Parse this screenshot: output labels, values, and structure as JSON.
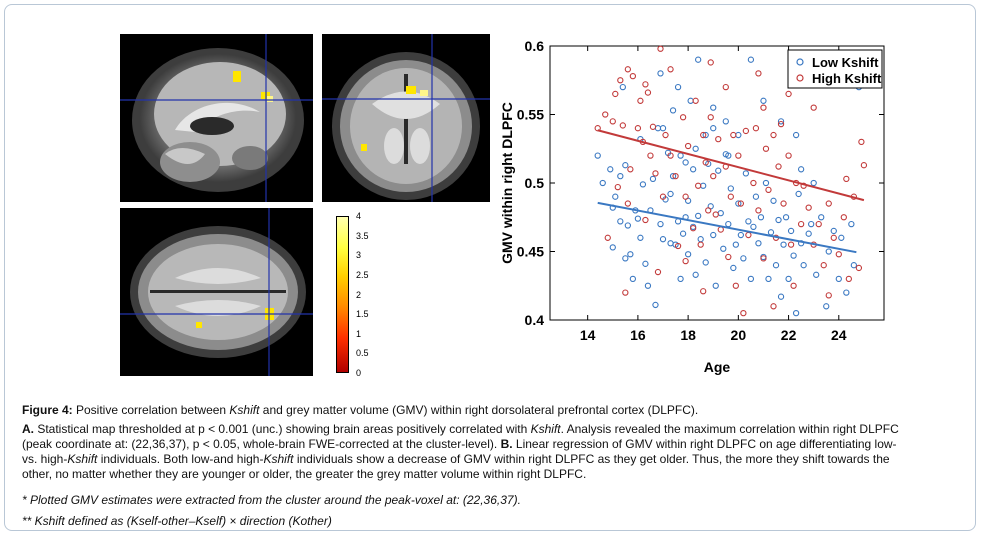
{
  "figure": {
    "label": "Figure 4:",
    "title_pre": " Positive correlation between ",
    "title_kshift": "Kshift",
    "title_post": " and grey matter volume (GMV) within right dorsolateral prefrontal cortex (DLPFC).",
    "a_label": "A.",
    "a_text_1": " Statistical map thresholded at p < 0.001 (unc.) showing brain areas positively correlated with ",
    "a_kshift": "Kshift",
    "a_text_2": ". Analysis revealed the maximum correlation within right DLPFC",
    "line2": "(peak coordinate at: (22,36,37), p < 0.05, whole-brain FWE-corrected at the cluster-level). ",
    "b_label": "B.",
    "line2_b": " Linear regression of GMV within right DLPFC on age differentiating low-",
    "line3_pre": "vs. high-",
    "line3_kshift": "Kshift",
    "line3_post": " individuals. Both low-and high-",
    "line3_kshift2": "Kshift",
    "line3_post2": " individuals show a decrease of GMV within right DLPFC as they get older. Thus, the more they shift towards the",
    "line4": "other, no matter whether they are younger or older, the greater the grey matter volume within right DLPFC.",
    "note1": "* Plotted GMV estimates were extracted from the cluster around the peak-voxel at: (22,36,37).",
    "note2": "** Kshift defined as (Kself-other–Kself) × direction (Kother)"
  },
  "colorbar": {
    "ticks": [
      "4",
      "3.5",
      "3",
      "2.5",
      "2",
      "1.5",
      "1",
      "0.5",
      "0"
    ]
  },
  "chart_data": {
    "type": "scatter",
    "xlabel": "Age",
    "ylabel": "GMV within right DLPFC",
    "xlim": [
      12.5,
      25.8
    ],
    "ylim": [
      0.4,
      0.6
    ],
    "xticks": [
      "14",
      "16",
      "18",
      "20",
      "22",
      "24"
    ],
    "yticks": [
      "0.4",
      "0.45",
      "0.5",
      "0.55",
      "0.6"
    ],
    "legend": "top-right",
    "series": [
      {
        "name": "Low Kshift",
        "color": "#3a78c2",
        "fit": [
          [
            14.4,
            0.4855
          ],
          [
            24.7,
            0.4495
          ]
        ],
        "points": [
          [
            14.4,
            0.52
          ],
          [
            14.6,
            0.5
          ],
          [
            14.9,
            0.51
          ],
          [
            15.0,
            0.482
          ],
          [
            15.0,
            0.453
          ],
          [
            15.1,
            0.49
          ],
          [
            15.3,
            0.472
          ],
          [
            15.3,
            0.505
          ],
          [
            15.5,
            0.513
          ],
          [
            15.5,
            0.445
          ],
          [
            15.6,
            0.469
          ],
          [
            15.7,
            0.448
          ],
          [
            15.8,
            0.43
          ],
          [
            15.9,
            0.48
          ],
          [
            16.0,
            0.474
          ],
          [
            16.1,
            0.532
          ],
          [
            16.1,
            0.46
          ],
          [
            16.2,
            0.499
          ],
          [
            16.3,
            0.441
          ],
          [
            16.4,
            0.425
          ],
          [
            16.5,
            0.48
          ],
          [
            16.6,
            0.503
          ],
          [
            16.7,
            0.411
          ],
          [
            16.8,
            0.54
          ],
          [
            16.9,
            0.47
          ],
          [
            17.0,
            0.54
          ],
          [
            17.0,
            0.459
          ],
          [
            17.1,
            0.488
          ],
          [
            17.2,
            0.522
          ],
          [
            17.3,
            0.456
          ],
          [
            17.3,
            0.492
          ],
          [
            17.4,
            0.505
          ],
          [
            17.5,
            0.455
          ],
          [
            17.6,
            0.472
          ],
          [
            17.7,
            0.52
          ],
          [
            17.7,
            0.43
          ],
          [
            17.8,
            0.463
          ],
          [
            17.9,
            0.515
          ],
          [
            17.9,
            0.475
          ],
          [
            18.0,
            0.487
          ],
          [
            18.0,
            0.448
          ],
          [
            18.1,
            0.56
          ],
          [
            18.2,
            0.51
          ],
          [
            18.2,
            0.468
          ],
          [
            18.3,
            0.433
          ],
          [
            18.3,
            0.525
          ],
          [
            18.4,
            0.476
          ],
          [
            18.5,
            0.459
          ],
          [
            18.6,
            0.498
          ],
          [
            18.7,
            0.535
          ],
          [
            18.7,
            0.442
          ],
          [
            18.8,
            0.514
          ],
          [
            18.9,
            0.483
          ],
          [
            19.0,
            0.462
          ],
          [
            19.0,
            0.54
          ],
          [
            19.1,
            0.425
          ],
          [
            19.2,
            0.509
          ],
          [
            19.3,
            0.478
          ],
          [
            19.4,
            0.452
          ],
          [
            19.5,
            0.521
          ],
          [
            19.6,
            0.47
          ],
          [
            19.7,
            0.496
          ],
          [
            19.8,
            0.438
          ],
          [
            19.9,
            0.455
          ],
          [
            20.0,
            0.535
          ],
          [
            20.0,
            0.485
          ],
          [
            20.1,
            0.462
          ],
          [
            20.2,
            0.445
          ],
          [
            20.3,
            0.507
          ],
          [
            20.4,
            0.472
          ],
          [
            20.5,
            0.43
          ],
          [
            20.6,
            0.468
          ],
          [
            20.7,
            0.49
          ],
          [
            20.8,
            0.456
          ],
          [
            20.9,
            0.475
          ],
          [
            21.0,
            0.446
          ],
          [
            21.1,
            0.5
          ],
          [
            21.2,
            0.43
          ],
          [
            21.3,
            0.464
          ],
          [
            21.4,
            0.487
          ],
          [
            21.5,
            0.44
          ],
          [
            21.6,
            0.473
          ],
          [
            21.7,
            0.417
          ],
          [
            21.8,
            0.455
          ],
          [
            21.9,
            0.475
          ],
          [
            22.0,
            0.43
          ],
          [
            22.1,
            0.465
          ],
          [
            22.2,
            0.447
          ],
          [
            22.3,
            0.405
          ],
          [
            22.4,
            0.492
          ],
          [
            22.5,
            0.456
          ],
          [
            22.6,
            0.44
          ],
          [
            22.8,
            0.463
          ],
          [
            22.9,
            0.47
          ],
          [
            23.1,
            0.433
          ],
          [
            23.3,
            0.475
          ],
          [
            23.5,
            0.41
          ],
          [
            23.6,
            0.45
          ],
          [
            23.8,
            0.465
          ],
          [
            24.0,
            0.43
          ],
          [
            24.1,
            0.46
          ],
          [
            24.3,
            0.42
          ],
          [
            24.5,
            0.47
          ],
          [
            24.6,
            0.44
          ],
          [
            18.4,
            0.59
          ],
          [
            17.6,
            0.57
          ],
          [
            16.9,
            0.58
          ],
          [
            15.4,
            0.57
          ],
          [
            20.5,
            0.59
          ],
          [
            17.4,
            0.553
          ],
          [
            19.5,
            0.545
          ],
          [
            19.0,
            0.555
          ],
          [
            21.0,
            0.56
          ],
          [
            21.7,
            0.545
          ],
          [
            22.3,
            0.535
          ],
          [
            19.6,
            0.52
          ],
          [
            22.5,
            0.51
          ],
          [
            23.0,
            0.5
          ],
          [
            24.8,
            0.57
          ]
        ]
      },
      {
        "name": "High Kshift",
        "color": "#c23a3a",
        "fit": [
          [
            14.4,
            0.5385
          ],
          [
            25.0,
            0.4875
          ]
        ],
        "points": [
          [
            14.4,
            0.54
          ],
          [
            14.7,
            0.55
          ],
          [
            15.0,
            0.545
          ],
          [
            15.1,
            0.565
          ],
          [
            15.2,
            0.497
          ],
          [
            15.3,
            0.575
          ],
          [
            15.4,
            0.542
          ],
          [
            15.6,
            0.485
          ],
          [
            15.6,
            0.583
          ],
          [
            15.7,
            0.51
          ],
          [
            15.8,
            0.578
          ],
          [
            16.0,
            0.54
          ],
          [
            16.1,
            0.56
          ],
          [
            16.2,
            0.53
          ],
          [
            16.3,
            0.473
          ],
          [
            16.4,
            0.566
          ],
          [
            16.5,
            0.52
          ],
          [
            16.6,
            0.541
          ],
          [
            16.7,
            0.507
          ],
          [
            16.9,
            0.598
          ],
          [
            17.0,
            0.49
          ],
          [
            17.1,
            0.535
          ],
          [
            17.3,
            0.52
          ],
          [
            17.5,
            0.505
          ],
          [
            17.6,
            0.454
          ],
          [
            17.8,
            0.548
          ],
          [
            17.9,
            0.49
          ],
          [
            18.0,
            0.527
          ],
          [
            18.2,
            0.467
          ],
          [
            18.3,
            0.56
          ],
          [
            18.4,
            0.498
          ],
          [
            18.5,
            0.455
          ],
          [
            18.6,
            0.535
          ],
          [
            18.7,
            0.515
          ],
          [
            18.8,
            0.48
          ],
          [
            18.9,
            0.548
          ],
          [
            19.0,
            0.505
          ],
          [
            19.1,
            0.477
          ],
          [
            19.2,
            0.532
          ],
          [
            19.3,
            0.466
          ],
          [
            19.5,
            0.512
          ],
          [
            19.6,
            0.446
          ],
          [
            19.7,
            0.49
          ],
          [
            19.8,
            0.535
          ],
          [
            19.9,
            0.425
          ],
          [
            20.0,
            0.52
          ],
          [
            20.1,
            0.485
          ],
          [
            20.3,
            0.538
          ],
          [
            20.4,
            0.462
          ],
          [
            20.6,
            0.5
          ],
          [
            20.7,
            0.54
          ],
          [
            20.8,
            0.48
          ],
          [
            21.0,
            0.445
          ],
          [
            21.1,
            0.525
          ],
          [
            21.2,
            0.495
          ],
          [
            21.4,
            0.535
          ],
          [
            21.5,
            0.46
          ],
          [
            21.6,
            0.512
          ],
          [
            21.8,
            0.485
          ],
          [
            22.0,
            0.52
          ],
          [
            22.1,
            0.455
          ],
          [
            22.3,
            0.5
          ],
          [
            22.5,
            0.47
          ],
          [
            22.6,
            0.498
          ],
          [
            22.8,
            0.482
          ],
          [
            23.0,
            0.455
          ],
          [
            23.2,
            0.47
          ],
          [
            23.4,
            0.44
          ],
          [
            23.6,
            0.485
          ],
          [
            23.8,
            0.46
          ],
          [
            24.0,
            0.448
          ],
          [
            24.2,
            0.475
          ],
          [
            24.4,
            0.43
          ],
          [
            24.6,
            0.49
          ],
          [
            24.8,
            0.438
          ],
          [
            25.0,
            0.513
          ],
          [
            15.5,
            0.42
          ],
          [
            16.8,
            0.435
          ],
          [
            17.9,
            0.443
          ],
          [
            18.6,
            0.421
          ],
          [
            20.2,
            0.405
          ],
          [
            21.4,
            0.41
          ],
          [
            22.2,
            0.425
          ],
          [
            23.6,
            0.418
          ],
          [
            21.0,
            0.555
          ],
          [
            22.0,
            0.565
          ],
          [
            23.0,
            0.555
          ],
          [
            24.9,
            0.53
          ],
          [
            21.7,
            0.543
          ],
          [
            19.5,
            0.57
          ],
          [
            18.9,
            0.588
          ],
          [
            20.8,
            0.58
          ],
          [
            17.3,
            0.583
          ],
          [
            16.3,
            0.572
          ],
          [
            24.3,
            0.503
          ],
          [
            14.8,
            0.46
          ]
        ]
      }
    ]
  }
}
